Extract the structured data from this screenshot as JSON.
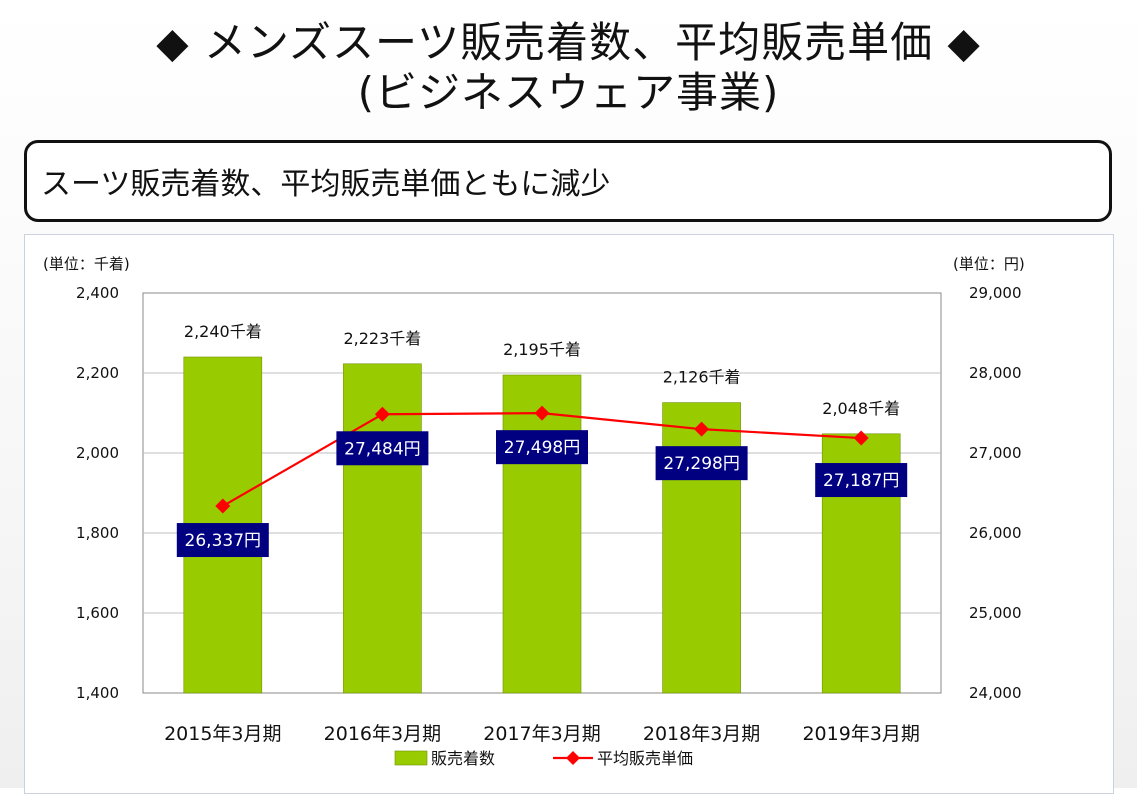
{
  "slide": {
    "title_line1": "◆ メンズスーツ販売着数、平均販売単価 ◆",
    "title_line2": "(ビジネスウェア事業)",
    "summary": "スーツ販売着数、平均販売単価ともに減少"
  },
  "chart_data": {
    "type": "bar",
    "categories": [
      "2015年3月期",
      "2016年3月期",
      "2017年3月期",
      "2018年3月期",
      "2019年3月期"
    ],
    "series": [
      {
        "name": "販売着数",
        "type": "bar",
        "axis": "left",
        "values": [
          2240,
          2223,
          2195,
          2126,
          2048
        ],
        "labels": [
          "2,240千着",
          "2,223千着",
          "2,195千着",
          "2,126千着",
          "2,048千着"
        ],
        "color": "#99cc00"
      },
      {
        "name": "平均販売単価",
        "type": "line",
        "axis": "right",
        "values": [
          26337,
          27484,
          27498,
          27298,
          27187
        ],
        "labels": [
          "26,337円",
          "27,484円",
          "27,498円",
          "27,298円",
          "27,187円"
        ],
        "color": "#ff0000",
        "label_bg": "#000080"
      }
    ],
    "left_axis": {
      "unit_label": "(単位：千着)",
      "ylim": [
        1400,
        2400
      ],
      "ticks": [
        1400,
        1600,
        1800,
        2000,
        2200,
        2400
      ],
      "tick_labels": [
        "1,400",
        "1,600",
        "1,800",
        "2,000",
        "2,200",
        "2,400"
      ]
    },
    "right_axis": {
      "unit_label": "(単位：円)",
      "ylim": [
        24000,
        29000
      ],
      "ticks": [
        24000,
        25000,
        26000,
        27000,
        28000,
        29000
      ],
      "tick_labels": [
        "24,000",
        "25,000",
        "26,000",
        "27,000",
        "28,000",
        "29,000"
      ]
    },
    "grid": true,
    "legend_position": "bottom"
  }
}
